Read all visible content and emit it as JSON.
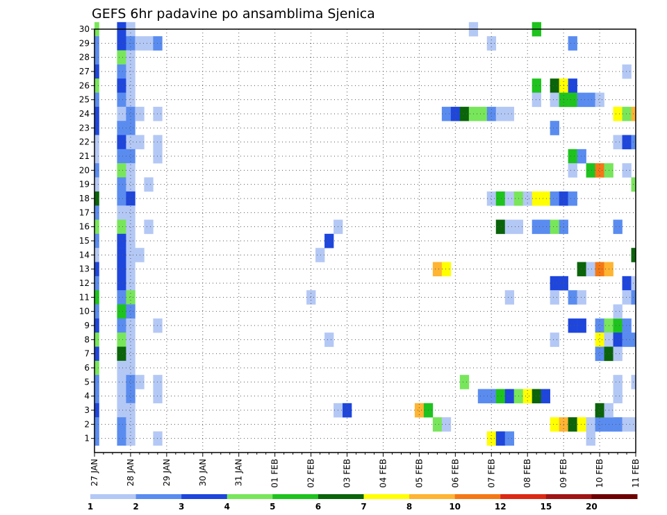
{
  "chart_data": {
    "type": "heatmap",
    "title": "GEFS 6hr padavine po ansamblima Sjenica",
    "x_tick_labels": [
      "27 JAN",
      "28 JAN",
      "29 JAN",
      "30 JAN",
      "31 JAN",
      "01 FEB",
      "02 FEB",
      "03 FEB",
      "04 FEB",
      "05 FEB",
      "06 FEB",
      "07 FEB",
      "08 FEB",
      "09 FEB",
      "10 FEB",
      "11 FEB"
    ],
    "y_tick_labels": [
      "1",
      "2",
      "3",
      "4",
      "5",
      "6",
      "7",
      "8",
      "9",
      "10",
      "11",
      "12",
      "13",
      "14",
      "15",
      "16",
      "17",
      "18",
      "19",
      "20",
      "21",
      "22",
      "23",
      "24",
      "25",
      "26",
      "27",
      "28",
      "29",
      "30"
    ],
    "steps_per_day": 4,
    "x_range_steps": [
      0,
      60
    ],
    "y_range": [
      0,
      30
    ],
    "grid": true,
    "legend": {
      "placement": "bottom",
      "labels": [
        "1",
        "2",
        "3",
        "4",
        "5",
        "6",
        "7",
        "8",
        "10",
        "12",
        "15",
        "20"
      ],
      "colors": [
        "#b4c8f5",
        "#5a8cf0",
        "#1e46dc",
        "#78e65a",
        "#1ec31e",
        "#0a640a",
        "#ffff00",
        "#ffb432",
        "#f57814",
        "#dc2814",
        "#a01414",
        "#6e0000"
      ]
    },
    "cells_note": "each cell: [member, step, color_index]",
    "cells": [
      [
        30,
        0,
        3
      ],
      [
        29,
        0,
        1
      ],
      [
        28,
        0,
        1
      ],
      [
        27,
        0,
        2
      ],
      [
        26,
        0,
        3
      ],
      [
        25,
        0,
        1
      ],
      [
        24,
        0,
        2
      ],
      [
        23,
        0,
        2
      ],
      [
        22,
        0,
        0
      ],
      [
        21,
        0,
        0
      ],
      [
        20,
        0,
        1
      ],
      [
        19,
        0,
        0
      ],
      [
        18,
        0,
        5
      ],
      [
        17,
        0,
        1
      ],
      [
        16,
        0,
        3
      ],
      [
        15,
        0,
        1
      ],
      [
        14,
        0,
        0
      ],
      [
        13,
        0,
        2
      ],
      [
        12,
        0,
        1
      ],
      [
        11,
        0,
        4
      ],
      [
        10,
        0,
        1
      ],
      [
        9,
        0,
        2
      ],
      [
        8,
        0,
        3
      ],
      [
        7,
        0,
        2
      ],
      [
        6,
        0,
        3
      ],
      [
        5,
        0,
        1
      ],
      [
        4,
        0,
        1
      ],
      [
        3,
        0,
        2
      ],
      [
        2,
        0,
        1
      ],
      [
        1,
        0,
        1
      ],
      [
        30,
        3,
        2
      ],
      [
        29,
        3,
        2
      ],
      [
        28,
        3,
        3
      ],
      [
        27,
        3,
        1
      ],
      [
        26,
        3,
        2
      ],
      [
        25,
        3,
        1
      ],
      [
        24,
        3,
        0
      ],
      [
        23,
        3,
        1
      ],
      [
        22,
        3,
        2
      ],
      [
        21,
        3,
        1
      ],
      [
        20,
        3,
        3
      ],
      [
        19,
        3,
        1
      ],
      [
        18,
        3,
        1
      ],
      [
        17,
        3,
        0
      ],
      [
        16,
        3,
        3
      ],
      [
        15,
        3,
        2
      ],
      [
        14,
        3,
        2
      ],
      [
        13,
        3,
        2
      ],
      [
        12,
        3,
        2
      ],
      [
        11,
        3,
        1
      ],
      [
        10,
        3,
        4
      ],
      [
        9,
        3,
        1
      ],
      [
        8,
        3,
        3
      ],
      [
        7,
        3,
        5
      ],
      [
        6,
        3,
        0
      ],
      [
        5,
        3,
        0
      ],
      [
        4,
        3,
        0
      ],
      [
        3,
        3,
        0
      ],
      [
        2,
        3,
        1
      ],
      [
        1,
        3,
        1
      ],
      [
        30,
        4,
        0
      ],
      [
        29,
        4,
        1
      ],
      [
        28,
        4,
        0
      ],
      [
        27,
        4,
        0
      ],
      [
        26,
        4,
        0
      ],
      [
        25,
        4,
        0
      ],
      [
        24,
        4,
        1
      ],
      [
        23,
        4,
        1
      ],
      [
        22,
        4,
        0
      ],
      [
        21,
        4,
        1
      ],
      [
        20,
        4,
        0
      ],
      [
        19,
        4,
        0
      ],
      [
        18,
        4,
        2
      ],
      [
        17,
        4,
        0
      ],
      [
        16,
        4,
        0
      ],
      [
        15,
        4,
        0
      ],
      [
        14,
        4,
        0
      ],
      [
        13,
        4,
        0
      ],
      [
        12,
        4,
        0
      ],
      [
        11,
        4,
        3
      ],
      [
        10,
        4,
        1
      ],
      [
        9,
        4,
        0
      ],
      [
        8,
        4,
        0
      ],
      [
        7,
        4,
        0
      ],
      [
        6,
        4,
        0
      ],
      [
        5,
        4,
        1
      ],
      [
        4,
        4,
        1
      ],
      [
        3,
        4,
        0
      ],
      [
        2,
        4,
        0
      ],
      [
        1,
        4,
        0
      ],
      [
        29,
        5,
        0
      ],
      [
        24,
        5,
        0
      ],
      [
        22,
        5,
        0
      ],
      [
        14,
        5,
        0
      ],
      [
        5,
        5,
        0
      ],
      [
        29,
        6,
        0
      ],
      [
        19,
        6,
        0
      ],
      [
        16,
        6,
        0
      ],
      [
        29,
        7,
        1
      ],
      [
        24,
        7,
        0
      ],
      [
        22,
        7,
        0
      ],
      [
        21,
        7,
        0
      ],
      [
        9,
        7,
        0
      ],
      [
        5,
        7,
        0
      ],
      [
        4,
        7,
        0
      ],
      [
        1,
        7,
        0
      ],
      [
        11,
        24,
        0
      ],
      [
        14,
        25,
        0
      ],
      [
        8,
        26,
        0
      ],
      [
        15,
        26,
        2
      ],
      [
        16,
        27,
        0
      ],
      [
        3,
        27,
        0
      ],
      [
        3,
        28,
        2
      ],
      [
        3,
        36,
        7
      ],
      [
        3,
        37,
        4
      ],
      [
        13,
        38,
        7
      ],
      [
        2,
        38,
        3
      ],
      [
        13,
        39,
        6
      ],
      [
        2,
        39,
        0
      ],
      [
        24,
        39,
        1
      ],
      [
        24,
        40,
        2
      ],
      [
        24,
        41,
        5
      ],
      [
        24,
        42,
        3
      ],
      [
        24,
        43,
        3
      ],
      [
        24,
        44,
        1
      ],
      [
        24,
        45,
        0
      ],
      [
        24,
        46,
        0
      ],
      [
        5,
        41,
        3
      ],
      [
        30,
        42,
        0
      ],
      [
        29,
        44,
        0
      ],
      [
        4,
        43,
        1
      ],
      [
        4,
        44,
        1
      ],
      [
        4,
        45,
        4
      ],
      [
        4,
        46,
        2
      ],
      [
        4,
        47,
        3
      ],
      [
        4,
        48,
        6
      ],
      [
        4,
        49,
        5
      ],
      [
        4,
        50,
        2
      ],
      [
        18,
        44,
        0
      ],
      [
        18,
        45,
        4
      ],
      [
        18,
        46,
        0
      ],
      [
        18,
        47,
        3
      ],
      [
        18,
        48,
        0
      ],
      [
        18,
        49,
        6
      ],
      [
        18,
        50,
        6
      ],
      [
        18,
        51,
        1
      ],
      [
        18,
        52,
        2
      ],
      [
        18,
        53,
        1
      ],
      [
        16,
        45,
        5
      ],
      [
        16,
        46,
        0
      ],
      [
        16,
        47,
        0
      ],
      [
        16,
        49,
        1
      ],
      [
        16,
        50,
        1
      ],
      [
        16,
        51,
        3
      ],
      [
        16,
        52,
        1
      ],
      [
        1,
        44,
        6
      ],
      [
        1,
        45,
        2
      ],
      [
        1,
        46,
        1
      ],
      [
        11,
        46,
        0
      ],
      [
        30,
        49,
        4
      ],
      [
        26,
        49,
        4
      ],
      [
        26,
        51,
        5
      ],
      [
        26,
        52,
        6
      ],
      [
        26,
        53,
        2
      ],
      [
        25,
        49,
        0
      ],
      [
        25,
        51,
        0
      ],
      [
        25,
        52,
        4
      ],
      [
        25,
        53,
        4
      ],
      [
        25,
        54,
        1
      ],
      [
        25,
        55,
        1
      ],
      [
        25,
        56,
        0
      ],
      [
        23,
        51,
        1
      ],
      [
        12,
        51,
        2
      ],
      [
        12,
        52,
        2
      ],
      [
        11,
        51,
        0
      ],
      [
        11,
        53,
        1
      ],
      [
        11,
        54,
        0
      ],
      [
        8,
        51,
        0
      ],
      [
        2,
        51,
        6
      ],
      [
        2,
        52,
        7
      ],
      [
        2,
        53,
        5
      ],
      [
        2,
        54,
        6
      ],
      [
        2,
        55,
        0
      ],
      [
        2,
        56,
        1
      ],
      [
        2,
        57,
        1
      ],
      [
        2,
        58,
        1
      ],
      [
        2,
        59,
        0
      ],
      [
        2,
        60,
        0
      ],
      [
        29,
        53,
        1
      ],
      [
        21,
        53,
        4
      ],
      [
        21,
        54,
        1
      ],
      [
        20,
        53,
        0
      ],
      [
        20,
        55,
        4
      ],
      [
        20,
        56,
        8
      ],
      [
        20,
        57,
        3
      ],
      [
        20,
        59,
        0
      ],
      [
        13,
        54,
        5
      ],
      [
        13,
        55,
        0
      ],
      [
        13,
        56,
        8
      ],
      [
        13,
        57,
        7
      ],
      [
        9,
        53,
        2
      ],
      [
        9,
        54,
        2
      ],
      [
        9,
        56,
        1
      ],
      [
        9,
        57,
        3
      ],
      [
        9,
        58,
        4
      ],
      [
        9,
        59,
        1
      ],
      [
        8,
        56,
        6
      ],
      [
        8,
        57,
        0
      ],
      [
        8,
        58,
        2
      ],
      [
        8,
        59,
        1
      ],
      [
        8,
        60,
        1
      ],
      [
        7,
        56,
        1
      ],
      [
        7,
        57,
        5
      ],
      [
        7,
        58,
        0
      ],
      [
        3,
        56,
        5
      ],
      [
        3,
        57,
        0
      ],
      [
        1,
        55,
        0
      ],
      [
        24,
        58,
        6
      ],
      [
        24,
        59,
        3
      ],
      [
        24,
        60,
        7
      ],
      [
        22,
        58,
        0
      ],
      [
        22,
        59,
        2
      ],
      [
        22,
        60,
        1
      ],
      [
        16,
        58,
        1
      ],
      [
        12,
        59,
        2
      ],
      [
        12,
        60,
        0
      ],
      [
        11,
        59,
        0
      ],
      [
        11,
        60,
        1
      ],
      [
        10,
        58,
        0
      ],
      [
        5,
        58,
        0
      ],
      [
        5,
        60,
        0
      ],
      [
        4,
        58,
        0
      ],
      [
        27,
        59,
        0
      ],
      [
        19,
        60,
        3
      ],
      [
        14,
        60,
        5
      ]
    ]
  }
}
